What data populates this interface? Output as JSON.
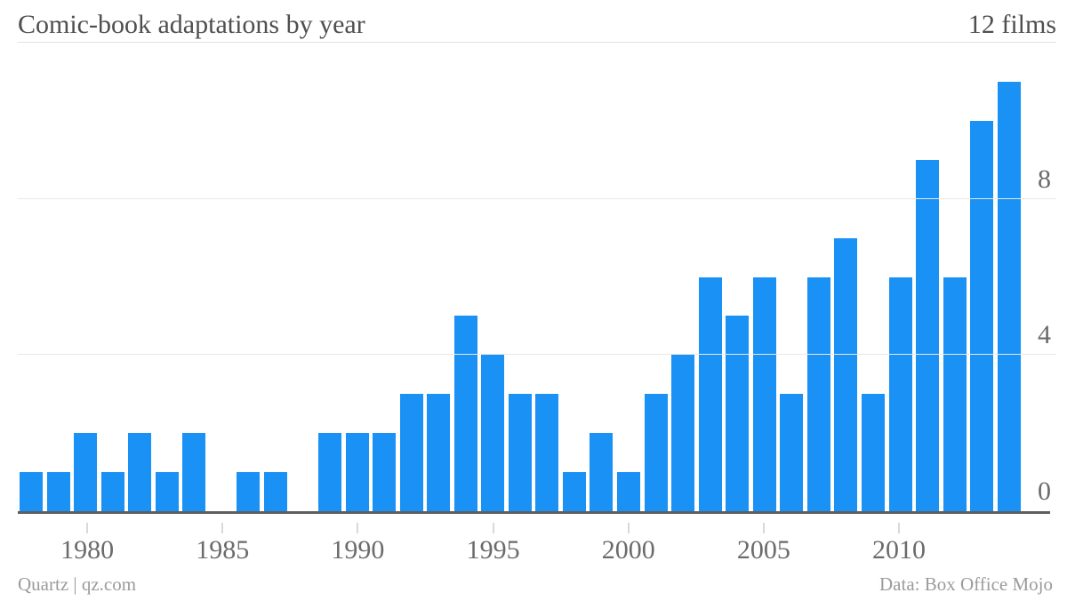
{
  "header": {
    "title": "Comic-book adaptations by year",
    "top_value_label": "12 films"
  },
  "footer": {
    "brand": "Quartz | qz.com",
    "source": "Data: Box Office Mojo"
  },
  "chart_data": {
    "type": "bar",
    "title": "Comic-book adaptations by year",
    "unit": "films",
    "x": [
      1978,
      1979,
      1980,
      1981,
      1982,
      1983,
      1984,
      1985,
      1986,
      1987,
      1988,
      1989,
      1990,
      1991,
      1992,
      1993,
      1994,
      1995,
      1996,
      1997,
      1998,
      1999,
      2000,
      2001,
      2002,
      2003,
      2004,
      2005,
      2006,
      2007,
      2008,
      2009,
      2010,
      2011,
      2012,
      2013,
      2014
    ],
    "values": [
      1,
      1,
      2,
      1,
      2,
      1,
      2,
      0,
      1,
      1,
      0,
      2,
      2,
      2,
      3,
      3,
      5,
      4,
      3,
      3,
      1,
      2,
      1,
      3,
      4,
      6,
      5,
      6,
      3,
      6,
      7,
      3,
      6,
      9,
      6,
      10,
      11
    ],
    "ylim": [
      0,
      12
    ],
    "y_gridlines": [
      4,
      8
    ],
    "y_ticks": [
      {
        "value": 0,
        "label": "0"
      },
      {
        "value": 4,
        "label": "4"
      },
      {
        "value": 8,
        "label": "8"
      }
    ],
    "x_ticks": [
      {
        "year": 1980,
        "label": "1980"
      },
      {
        "year": 1985,
        "label": "1985"
      },
      {
        "year": 1990,
        "label": "1990"
      },
      {
        "year": 1995,
        "label": "1995"
      },
      {
        "year": 2000,
        "label": "2000"
      },
      {
        "year": 2005,
        "label": "2005"
      },
      {
        "year": 2010,
        "label": "2010"
      }
    ],
    "bar_color": "#1991f5",
    "grid": true,
    "legend": "none"
  }
}
